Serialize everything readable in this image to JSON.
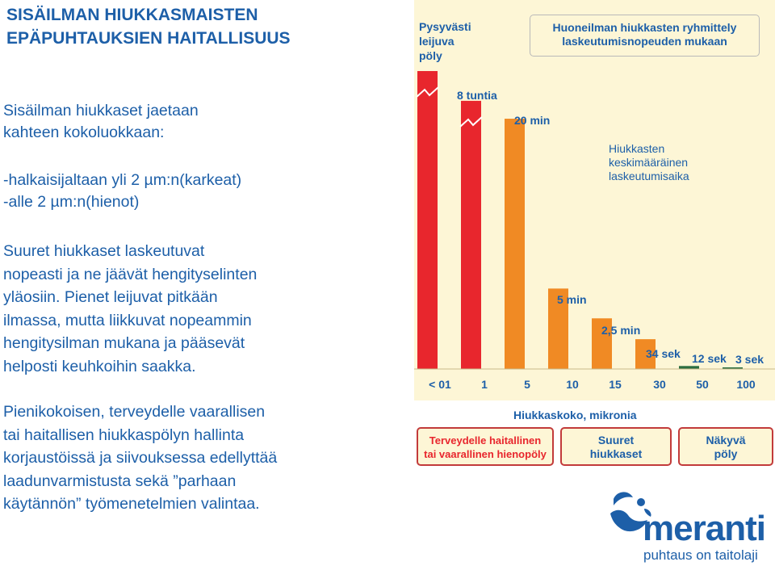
{
  "title": [
    "SISÄILMAN HIUKKASMAISTEN",
    "EPÄPUHTAUKSIEN HAITALLISUUS"
  ],
  "intro": [
    "Sisäilman hiukkaset jaetaan",
    "kahteen kokoluokkaan:"
  ],
  "classes": [
    "-halkaisijaltaan yli 2 µm:n(karkeat)",
    "-alle 2 µm:n(hienot)"
  ],
  "paragraph1": [
    "Suuret hiukkaset laskeutuvat",
    "nopeasti ja ne jäävät hengityselinten",
    "yläosiin. Pienet leijuvat pitkään",
    "ilmassa, mutta liikkuvat nopeammin",
    "hengitysilman mukana ja pääsevät",
    "helposti keuhkoihin saakka."
  ],
  "paragraph2": [
    "Pienikokoisen, terveydelle vaarallisen",
    "tai haitallisen hiukkaspölyn hallinta",
    "korjaustöissä ja siivouksessa edellyttää",
    "laadunvarmistusta sekä ”parhaan",
    "käytännön” työmenetelmien valintaa."
  ],
  "chart": {
    "top_left_label": [
      "Pysyvästi",
      "leijuva",
      "pöly"
    ],
    "header_box": [
      "Huoneilman hiukkasten ryhmittely",
      "laskeutumisnopeuden mukaan"
    ],
    "legend_label": [
      "Hiukkasten",
      "keskimääräinen",
      "laskeutumisaika"
    ],
    "xlabel": "Hiukkaskoko, mikronia",
    "categories": [
      "< 01",
      "1",
      "5",
      "10",
      "15",
      "30",
      "50",
      "100"
    ],
    "bar_labels": [
      "",
      "8 tuntia",
      "20 min",
      "5 min",
      "2,5 min",
      "34 sek",
      "12 sek",
      "3 sek"
    ],
    "bottom_boxes": [
      [
        "Terveydelle haitallinen",
        "tai vaarallinen hienopöly"
      ],
      [
        "Suuret",
        "hiukkaset"
      ],
      [
        "Näkyvä",
        "pöly"
      ]
    ]
  },
  "chart_data": {
    "type": "bar",
    "title": "Huoneilman hiukkasten ryhmittely laskeutumisnopeuden mukaan",
    "xlabel": "Hiukkaskoko, mikronia",
    "ylabel": "Hiukkasten keskimääräinen laskeutumisaika",
    "categories": [
      "< 01",
      "1",
      "5",
      "10",
      "15",
      "30",
      "50",
      "100"
    ],
    "value_labels": [
      "Pysyvästi leijuva pöly",
      "8 tuntia",
      "20 min",
      "5 min",
      "2,5 min",
      "34 sek",
      "12 sek",
      "3 sek"
    ],
    "values_seconds": [
      null,
      28800,
      1200,
      300,
      150,
      34,
      12,
      3
    ],
    "bar_heights_relative": [
      1.0,
      0.9,
      0.84,
      0.27,
      0.17,
      0.1,
      0.01,
      0.005
    ],
    "colors": [
      "#e8262d",
      "#e8262d",
      "#f08a24",
      "#f08a24",
      "#f08a24",
      "#f08a24",
      "#2c6e3f",
      "#2c6e3f"
    ],
    "broken_axis_bars": [
      0,
      1
    ]
  },
  "logo": {
    "name": "meranti",
    "tagline": "puhtaus on taitolaji",
    "color": "#1d5fa8"
  }
}
